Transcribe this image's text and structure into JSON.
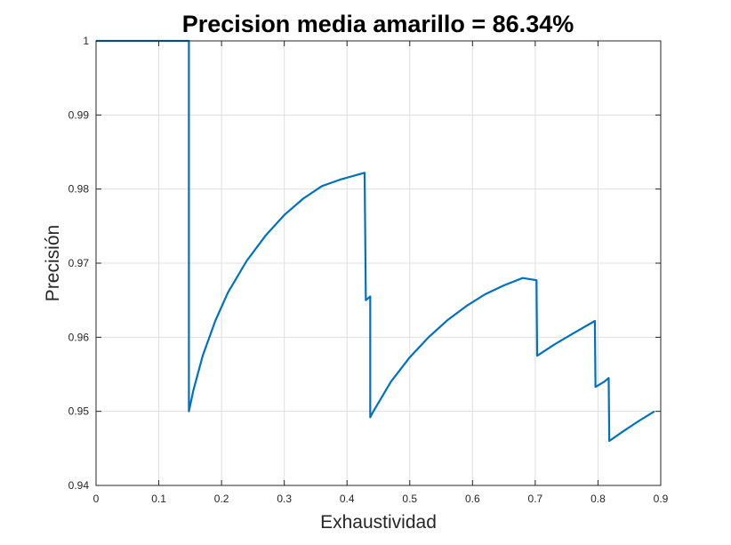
{
  "chart_data": {
    "type": "line",
    "title": "Precision media amarillo = 86.34%",
    "xlabel": "Exhaustividad",
    "ylabel": "Precisión",
    "xlim": [
      0,
      0.9
    ],
    "ylim": [
      0.94,
      1.0
    ],
    "xticks": [
      0,
      0.1,
      0.2,
      0.3,
      0.4,
      0.5,
      0.6,
      0.7,
      0.8,
      0.9
    ],
    "yticks": [
      0.94,
      0.95,
      0.96,
      0.97,
      0.98,
      0.99,
      1.0
    ],
    "xtick_labels": [
      "0",
      "0.1",
      "0.2",
      "0.3",
      "0.4",
      "0.5",
      "0.6",
      "0.7",
      "0.8",
      "0.9"
    ],
    "ytick_labels": [
      "0.94",
      "0.95",
      "0.96",
      "0.97",
      "0.98",
      "0.99",
      "1"
    ],
    "grid": true,
    "series": [
      {
        "color": "#0072bd",
        "x": [
          0,
          0.148,
          0.148,
          0.155,
          0.17,
          0.19,
          0.21,
          0.24,
          0.27,
          0.3,
          0.33,
          0.36,
          0.39,
          0.428,
          0.43,
          0.437,
          0.437,
          0.442,
          0.47,
          0.5,
          0.53,
          0.56,
          0.59,
          0.62,
          0.65,
          0.68,
          0.702,
          0.703,
          0.73,
          0.76,
          0.795,
          0.796,
          0.81,
          0.817,
          0.818,
          0.84,
          0.865,
          0.89
        ],
        "y": [
          1.0,
          1.0,
          0.95,
          0.9528,
          0.9575,
          0.9622,
          0.966,
          0.9703,
          0.9737,
          0.9765,
          0.9787,
          0.9804,
          0.9813,
          0.9822,
          0.965,
          0.9655,
          0.9492,
          0.95,
          0.954,
          0.9573,
          0.96,
          0.9623,
          0.9642,
          0.9658,
          0.967,
          0.968,
          0.9677,
          0.9575,
          0.959,
          0.9605,
          0.9622,
          0.9533,
          0.954,
          0.9545,
          0.946,
          0.9473,
          0.9487,
          0.95
        ]
      }
    ]
  }
}
